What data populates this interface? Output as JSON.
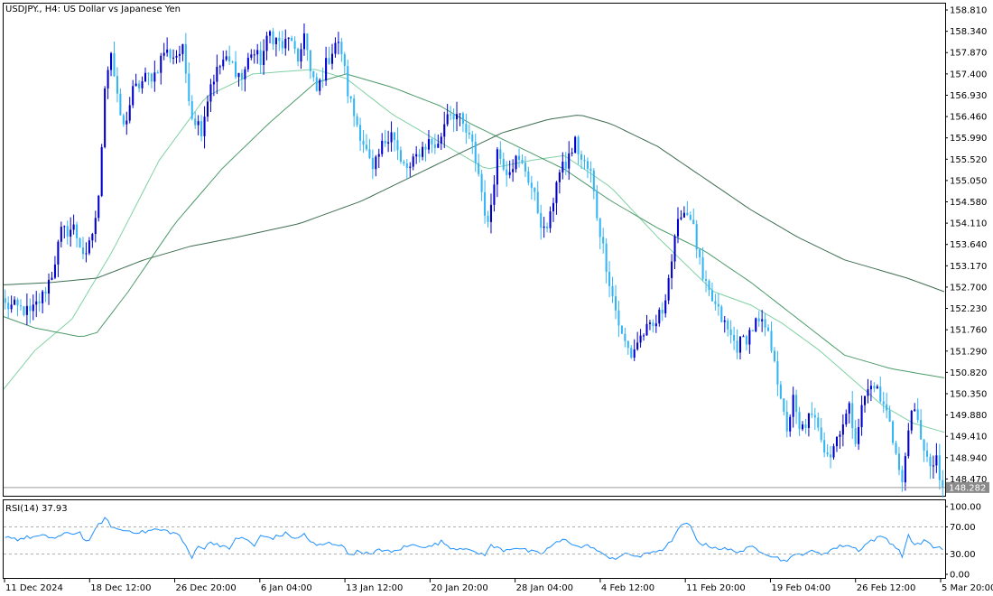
{
  "header": {
    "symbol": "USDJPY.",
    "timeframe": "H4:",
    "description": "US Dollar vs Japanese Yen"
  },
  "rsi_header": {
    "label": "RSI(14)",
    "value": "37.93"
  },
  "colors": {
    "bull": "#0000cc",
    "bear": "#33b5f5",
    "ma_fast": "#7fd1a4",
    "ma_mid": "#4c9a6a",
    "ma_slow": "#3f6e52",
    "rsi": "#1e90ff",
    "price_tag_bg": "#8a8a8a"
  },
  "chart_data": [
    {
      "type": "candlestick",
      "title": "USDJPY., H4: US Dollar vs Japanese Yen",
      "ylim": [
        148.1,
        158.95
      ],
      "y_ticks": [
        "158.810",
        "158.340",
        "157.870",
        "157.400",
        "156.930",
        "156.460",
        "155.990",
        "155.520",
        "155.050",
        "154.580",
        "154.110",
        "153.640",
        "153.170",
        "152.700",
        "152.230",
        "151.760",
        "151.290",
        "150.820",
        "150.350",
        "149.880",
        "149.410",
        "148.940",
        "148.470"
      ],
      "x_ticks": [
        "11 Dec 2024",
        "18 Dec 12:00",
        "26 Dec 20:00",
        "6 Jan 04:00",
        "13 Jan 12:00",
        "20 Jan 20:00",
        "28 Jan 04:00",
        "4 Feb 12:00",
        "11 Feb 20:00",
        "19 Feb 04:00",
        "26 Feb 12:00",
        "5 Mar 20:00"
      ],
      "current_price": "148.282",
      "anchors": [
        [
          0,
          152.3
        ],
        [
          6,
          152.2
        ],
        [
          8,
          152.1
        ],
        [
          12,
          152.5
        ],
        [
          15,
          153.0
        ],
        [
          18,
          153.9
        ],
        [
          22,
          154.0
        ],
        [
          26,
          153.3
        ],
        [
          28,
          153.9
        ],
        [
          30,
          154.6
        ],
        [
          32,
          157.2
        ],
        [
          34,
          157.9
        ],
        [
          36,
          156.8
        ],
        [
          38,
          156.2
        ],
        [
          41,
          157.0
        ],
        [
          45,
          157.3
        ],
        [
          48,
          157.4
        ],
        [
          51,
          157.9
        ],
        [
          54,
          157.8
        ],
        [
          57,
          157.9
        ],
        [
          60,
          156.5
        ],
        [
          63,
          156.2
        ],
        [
          66,
          157.2
        ],
        [
          70,
          157.7
        ],
        [
          73,
          157.6
        ],
        [
          76,
          157.3
        ],
        [
          79,
          157.9
        ],
        [
          82,
          157.7
        ],
        [
          85,
          158.3
        ],
        [
          89,
          158.0
        ],
        [
          92,
          158.2
        ],
        [
          94,
          157.5
        ],
        [
          96,
          158.4
        ],
        [
          98,
          157.4
        ],
        [
          100,
          157.0
        ],
        [
          103,
          157.6
        ],
        [
          106,
          158.1
        ],
        [
          108,
          157.9
        ],
        [
          110,
          157.0
        ],
        [
          112,
          156.5
        ],
        [
          115,
          155.9
        ],
        [
          118,
          155.2
        ],
        [
          121,
          155.8
        ],
        [
          124,
          156.2
        ],
        [
          127,
          155.4
        ],
        [
          130,
          155.3
        ],
        [
          133,
          155.7
        ],
        [
          136,
          155.9
        ],
        [
          139,
          155.8
        ],
        [
          142,
          156.6
        ],
        [
          145,
          156.5
        ],
        [
          148,
          156.1
        ],
        [
          150,
          155.8
        ],
        [
          152,
          155.2
        ],
        [
          155,
          154.0
        ],
        [
          158,
          155.7
        ],
        [
          161,
          155.3
        ],
        [
          164,
          155.5
        ],
        [
          167,
          155.3
        ],
        [
          169,
          154.9
        ],
        [
          171,
          154.4
        ],
        [
          173,
          153.9
        ],
        [
          175,
          154.2
        ],
        [
          177,
          155.1
        ],
        [
          180,
          155.4
        ],
        [
          183,
          155.9
        ],
        [
          185,
          155.5
        ],
        [
          188,
          155.2
        ],
        [
          190,
          154.3
        ],
        [
          193,
          153.2
        ],
        [
          195,
          152.5
        ],
        [
          198,
          151.6
        ],
        [
          201,
          151.2
        ],
        [
          203,
          151.5
        ],
        [
          205,
          151.7
        ],
        [
          208,
          151.8
        ],
        [
          211,
          152.2
        ],
        [
          214,
          153.3
        ],
        [
          217,
          154.4
        ],
        [
          220,
          154.3
        ],
        [
          222,
          153.6
        ],
        [
          224,
          152.8
        ],
        [
          227,
          152.4
        ],
        [
          230,
          152.0
        ],
        [
          233,
          151.6
        ],
        [
          235,
          151.4
        ],
        [
          238,
          151.6
        ],
        [
          241,
          151.9
        ],
        [
          244,
          151.8
        ],
        [
          247,
          151.2
        ],
        [
          249,
          150.1
        ],
        [
          251,
          149.6
        ],
        [
          253,
          150.2
        ],
        [
          255,
          149.5
        ],
        [
          258,
          149.8
        ],
        [
          261,
          149.7
        ],
        [
          263,
          149.2
        ],
        [
          265,
          149.0
        ],
        [
          268,
          149.6
        ],
        [
          271,
          150.0
        ],
        [
          273,
          149.4
        ],
        [
          276,
          150.3
        ],
        [
          279,
          150.6
        ],
        [
          281,
          150.2
        ],
        [
          284,
          149.8
        ],
        [
          286,
          149.0
        ],
        [
          288,
          148.3
        ],
        [
          290,
          149.7
        ],
        [
          292,
          149.9
        ],
        [
          295,
          149.2
        ],
        [
          297,
          148.6
        ],
        [
          299,
          149.0
        ],
        [
          300,
          148.28
        ]
      ],
      "moving_averages": [
        {
          "anchors": [
            [
              0,
              150.45
            ],
            [
              10,
              151.3
            ],
            [
              22,
              152.0
            ],
            [
              35,
              153.5
            ],
            [
              50,
              155.5
            ],
            [
              65,
              156.9
            ],
            [
              80,
              157.4
            ],
            [
              100,
              157.5
            ],
            [
              110,
              157.3
            ],
            [
              125,
              156.5
            ],
            [
              140,
              155.9
            ],
            [
              155,
              155.3
            ],
            [
              170,
              155.5
            ],
            [
              180,
              155.6
            ],
            [
              195,
              154.9
            ],
            [
              210,
              153.8
            ],
            [
              222,
              153.0
            ],
            [
              228,
              152.6
            ],
            [
              240,
              152.3
            ],
            [
              250,
              151.9
            ],
            [
              262,
              151.3
            ],
            [
              272,
              150.7
            ],
            [
              282,
              150.1
            ],
            [
              292,
              149.7
            ],
            [
              302,
              149.5
            ]
          ]
        },
        {
          "anchors": [
            [
              0,
              152.05
            ],
            [
              10,
              151.8
            ],
            [
              25,
              151.6
            ],
            [
              30,
              151.7
            ],
            [
              40,
              152.6
            ],
            [
              55,
              154.1
            ],
            [
              70,
              155.3
            ],
            [
              85,
              156.3
            ],
            [
              100,
              157.2
            ],
            [
              110,
              157.4
            ],
            [
              125,
              157.1
            ],
            [
              140,
              156.7
            ],
            [
              150,
              156.3
            ],
            [
              165,
              155.8
            ],
            [
              180,
              155.3
            ],
            [
              195,
              154.6
            ],
            [
              210,
              154.0
            ],
            [
              225,
              153.5
            ],
            [
              240,
              152.8
            ],
            [
              255,
              152.0
            ],
            [
              270,
              151.2
            ],
            [
              285,
              150.9
            ],
            [
              302,
              150.7
            ]
          ]
        },
        {
          "anchors": [
            [
              0,
              152.75
            ],
            [
              15,
              152.8
            ],
            [
              30,
              152.9
            ],
            [
              45,
              153.3
            ],
            [
              60,
              153.6
            ],
            [
              75,
              153.8
            ],
            [
              95,
              154.1
            ],
            [
              115,
              154.6
            ],
            [
              130,
              155.1
            ],
            [
              145,
              155.6
            ],
            [
              160,
              156.1
            ],
            [
              175,
              156.4
            ],
            [
              185,
              156.5
            ],
            [
              195,
              156.3
            ],
            [
              210,
              155.8
            ],
            [
              225,
              155.1
            ],
            [
              240,
              154.4
            ],
            [
              255,
              153.8
            ],
            [
              270,
              153.3
            ],
            [
              290,
              152.9
            ],
            [
              302,
              152.6
            ]
          ]
        }
      ]
    },
    {
      "type": "line",
      "title": "RSI(14) 37.93",
      "ylim": [
        0,
        100
      ],
      "y_ticks": [
        "100.00",
        "70.00",
        "30.00",
        "0.00"
      ],
      "levels": [
        70,
        30
      ],
      "anchors": [
        [
          0,
          57
        ],
        [
          4,
          52
        ],
        [
          8,
          55
        ],
        [
          12,
          56
        ],
        [
          16,
          54
        ],
        [
          20,
          60
        ],
        [
          24,
          62
        ],
        [
          26,
          48
        ],
        [
          28,
          56
        ],
        [
          30,
          74
        ],
        [
          32,
          82
        ],
        [
          34,
          72
        ],
        [
          36,
          66
        ],
        [
          40,
          64
        ],
        [
          44,
          62
        ],
        [
          48,
          66
        ],
        [
          52,
          64
        ],
        [
          56,
          58
        ],
        [
          58,
          40
        ],
        [
          60,
          24
        ],
        [
          62,
          44
        ],
        [
          64,
          38
        ],
        [
          66,
          48
        ],
        [
          70,
          42
        ],
        [
          72,
          35
        ],
        [
          74,
          55
        ],
        [
          78,
          50
        ],
        [
          80,
          42
        ],
        [
          82,
          56
        ],
        [
          86,
          54
        ],
        [
          90,
          60
        ],
        [
          94,
          52
        ],
        [
          96,
          60
        ],
        [
          98,
          48
        ],
        [
          100,
          42
        ],
        [
          104,
          46
        ],
        [
          108,
          44
        ],
        [
          110,
          30
        ],
        [
          114,
          34
        ],
        [
          118,
          28
        ],
        [
          120,
          38
        ],
        [
          124,
          32
        ],
        [
          128,
          40
        ],
        [
          132,
          44
        ],
        [
          136,
          40
        ],
        [
          140,
          48
        ],
        [
          144,
          38
        ],
        [
          148,
          40
        ],
        [
          150,
          32
        ],
        [
          154,
          30
        ],
        [
          156,
          42
        ],
        [
          160,
          36
        ],
        [
          164,
          40
        ],
        [
          168,
          34
        ],
        [
          172,
          30
        ],
        [
          176,
          44
        ],
        [
          180,
          52
        ],
        [
          184,
          40
        ],
        [
          188,
          42
        ],
        [
          192,
          28
        ],
        [
          196,
          24
        ],
        [
          200,
          30
        ],
        [
          204,
          26
        ],
        [
          208,
          34
        ],
        [
          212,
          38
        ],
        [
          216,
          64
        ],
        [
          218,
          76
        ],
        [
          220,
          70
        ],
        [
          222,
          52
        ],
        [
          224,
          44
        ],
        [
          228,
          40
        ],
        [
          232,
          36
        ],
        [
          236,
          34
        ],
        [
          240,
          40
        ],
        [
          244,
          32
        ],
        [
          248,
          24
        ],
        [
          250,
          20
        ],
        [
          254,
          28
        ],
        [
          258,
          34
        ],
        [
          262,
          30
        ],
        [
          266,
          38
        ],
        [
          270,
          44
        ],
        [
          274,
          36
        ],
        [
          278,
          50
        ],
        [
          282,
          56
        ],
        [
          286,
          40
        ],
        [
          288,
          28
        ],
        [
          290,
          56
        ],
        [
          292,
          44
        ],
        [
          296,
          50
        ],
        [
          298,
          38
        ]
      ]
    }
  ]
}
